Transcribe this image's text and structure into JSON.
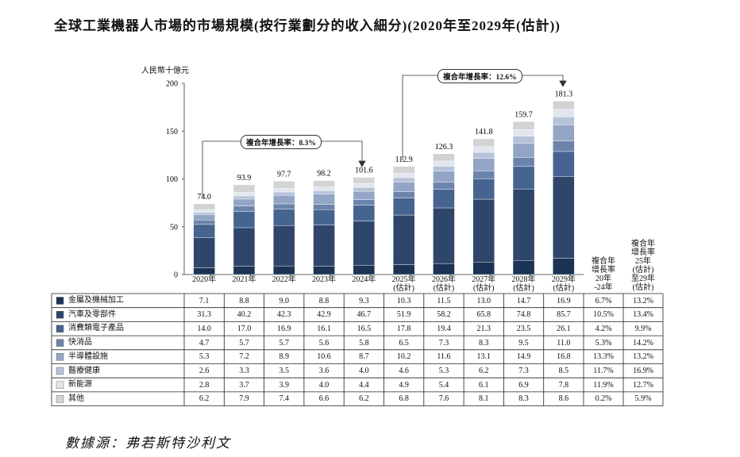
{
  "chart_data": {
    "type": "stacked-bar",
    "title": "全球工業機器人市場的市場規模(按行業劃分的收入細分)(2020年至2029年(估計))",
    "y_label": "人民幣十億元",
    "categories": [
      "2020年",
      "2021年",
      "2022年",
      "2023年",
      "2024年",
      "2025年\n(估計)",
      "2026年\n(估計)",
      "2027年\n(估計)",
      "2028年\n(估計)",
      "2029年\n(估計)"
    ],
    "ylim": [
      0,
      200
    ],
    "yticks": [
      0,
      50,
      100,
      150,
      200
    ],
    "totals": {
      "values": [
        74,
        93.9,
        97.7,
        98.2,
        101.6,
        112.9,
        126.3,
        141.8,
        159.7,
        181.3
      ],
      "value_labels": [
        "74.0",
        "93.9",
        "97.7",
        "98.2",
        "101.6",
        "112.9",
        "126.3",
        "141.8",
        "159.7",
        "181.3"
      ]
    },
    "annotations": [
      "複合年增長率：8.3%",
      "複合年增長率：12.6%"
    ],
    "cagr_headers": [
      "複合年\n增長率\n20年\n-24年",
      "複合年\n增長率\n25年\n(估計)\n至29年\n(估計)"
    ],
    "series": [
      {
        "name": "金屬及機械加工",
        "color": "#1b3354",
        "values": [
          7.1,
          8.8,
          9.0,
          8.8,
          9.3,
          10.3,
          11.5,
          13.0,
          14.7,
          16.9
        ],
        "value_labels": [
          "7.1",
          "8.8",
          "9.0",
          "8.8",
          "9.3",
          "10.3",
          "11.5",
          "13.0",
          "14.7",
          "16.9"
        ],
        "cagr": [
          "6.7%",
          "13.2%"
        ]
      },
      {
        "name": "汽車及零部件",
        "color": "#2f466b",
        "values": [
          31.3,
          40.2,
          42.3,
          42.9,
          46.7,
          51.9,
          58.2,
          65.8,
          74.8,
          85.7
        ],
        "value_labels": [
          "31.3",
          "40.2",
          "42.3",
          "42.9",
          "46.7",
          "51.9",
          "58.2",
          "65.8",
          "74.8",
          "85.7"
        ],
        "cagr": [
          "10.5%",
          "13.4%"
        ]
      },
      {
        "name": "消費類電子產品",
        "color": "#476490",
        "values": [
          14.0,
          17.0,
          16.9,
          16.1,
          16.5,
          17.8,
          19.4,
          21.3,
          23.5,
          26.1
        ],
        "value_labels": [
          "14.0",
          "17.0",
          "16.9",
          "16.1",
          "16.5",
          "17.8",
          "19.4",
          "21.3",
          "23.5",
          "26.1"
        ],
        "cagr": [
          "4.2%",
          "9.9%"
        ]
      },
      {
        "name": "快消品",
        "color": "#6c84ab",
        "values": [
          4.7,
          5.7,
          5.7,
          5.6,
          5.8,
          6.5,
          7.3,
          8.3,
          9.5,
          11.0
        ],
        "value_labels": [
          "4.7",
          "5.7",
          "5.7",
          "5.6",
          "5.8",
          "6.5",
          "7.3",
          "8.3",
          "9.5",
          "11.0"
        ],
        "cagr": [
          "5.3%",
          "14.2%"
        ]
      },
      {
        "name": "半導體設施",
        "color": "#93a5c4",
        "values": [
          5.3,
          7.2,
          8.9,
          10.6,
          8.7,
          10.2,
          11.6,
          13.1,
          14.9,
          16.8
        ],
        "value_labels": [
          "5.3",
          "7.2",
          "8.9",
          "10.6",
          "8.7",
          "10.2",
          "11.6",
          "13.1",
          "14.9",
          "16.8"
        ],
        "cagr": [
          "13.3%",
          "13.2%"
        ]
      },
      {
        "name": "醫療健康",
        "color": "#b6c2d8",
        "values": [
          2.6,
          3.3,
          3.5,
          3.6,
          4.0,
          4.6,
          5.3,
          6.2,
          7.3,
          8.5
        ],
        "value_labels": [
          "2.6",
          "3.3",
          "3.5",
          "3.6",
          "4.0",
          "4.6",
          "5.3",
          "6.2",
          "7.3",
          "8.5"
        ],
        "cagr": [
          "11.7%",
          "16.9%"
        ]
      },
      {
        "name": "新能源",
        "color": "#e1e6ef",
        "values": [
          2.8,
          3.7,
          3.9,
          4.0,
          4.4,
          4.9,
          5.4,
          6.1,
          6.9,
          7.8
        ],
        "value_labels": [
          "2.8",
          "3.7",
          "3.9",
          "4.0",
          "4.4",
          "4.9",
          "5.4",
          "6.1",
          "6.9",
          "7.8"
        ],
        "cagr": [
          "11.9%",
          "12.7%"
        ]
      },
      {
        "name": "其他",
        "color": "#d3d3d3",
        "values": [
          6.2,
          7.9,
          7.4,
          6.6,
          6.2,
          6.8,
          7.6,
          8.1,
          8.3,
          8.6
        ],
        "value_labels": [
          "6.2",
          "7.9",
          "7.4",
          "6.6",
          "6.2",
          "6.8",
          "7.6",
          "8.1",
          "8.3",
          "8.6"
        ],
        "cagr": [
          "0.2%",
          "5.9%"
        ]
      }
    ],
    "source": "數據源：弗若斯特沙利文"
  }
}
